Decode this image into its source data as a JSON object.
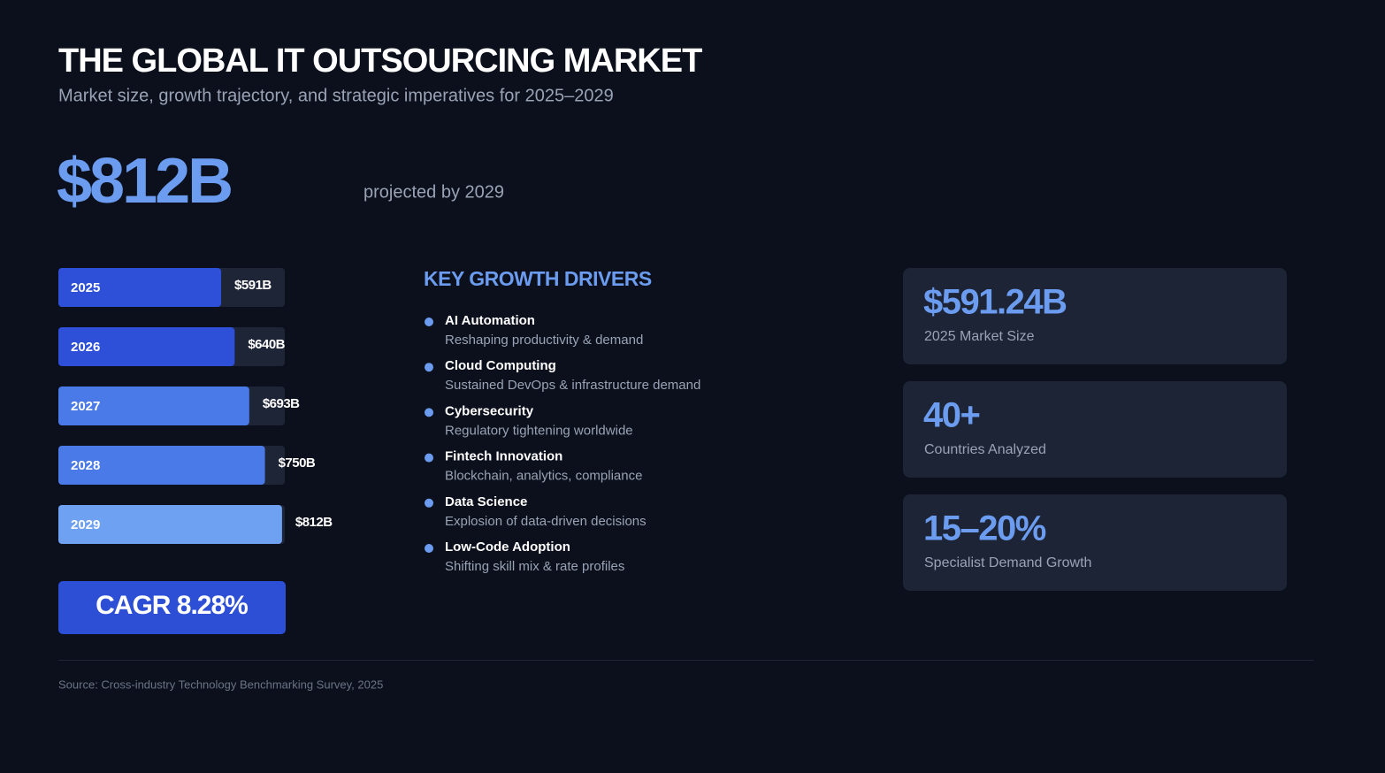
{
  "header": {
    "title": "THE GLOBAL IT OUTSOURCING MARKET",
    "subtitle": "Market size, growth trajectory, and strategic imperatives for 2025–2029"
  },
  "headline": {
    "value": "$812B",
    "note": "projected by 2029"
  },
  "chart_data": {
    "type": "bar",
    "orientation": "horizontal",
    "categories": [
      "2025",
      "2026",
      "2027",
      "2028",
      "2029"
    ],
    "values": [
      591,
      640,
      693,
      750,
      812
    ],
    "value_labels": [
      "$591B",
      "$640B",
      "$693B",
      "$750B",
      "$812B"
    ],
    "colors": [
      "#2e4fd8",
      "#2e4fd8",
      "#4a79e8",
      "#4a79e8",
      "#6fa1f3"
    ],
    "xlim": [
      0,
      822
    ]
  },
  "cagr": "CAGR 8.28%",
  "drivers": {
    "title": "KEY GROWTH DRIVERS",
    "items": [
      {
        "name": "AI Automation",
        "desc": "Reshaping productivity & demand"
      },
      {
        "name": "Cloud Computing",
        "desc": "Sustained DevOps & infrastructure demand"
      },
      {
        "name": "Cybersecurity",
        "desc": "Regulatory tightening worldwide"
      },
      {
        "name": "Fintech Innovation",
        "desc": "Blockchain, analytics, compliance"
      },
      {
        "name": "Data Science",
        "desc": "Explosion of data-driven decisions"
      },
      {
        "name": "Low-Code Adoption",
        "desc": "Shifting skill mix & rate profiles"
      }
    ]
  },
  "stats": [
    {
      "value": "$591.24B",
      "label": "2025 Market Size"
    },
    {
      "value": "40+",
      "label": "Countries Analyzed"
    },
    {
      "value": "15–20%",
      "label": "Specialist Demand Growth"
    }
  ],
  "source": "Source: Cross-industry Technology Benchmarking Survey, 2025"
}
